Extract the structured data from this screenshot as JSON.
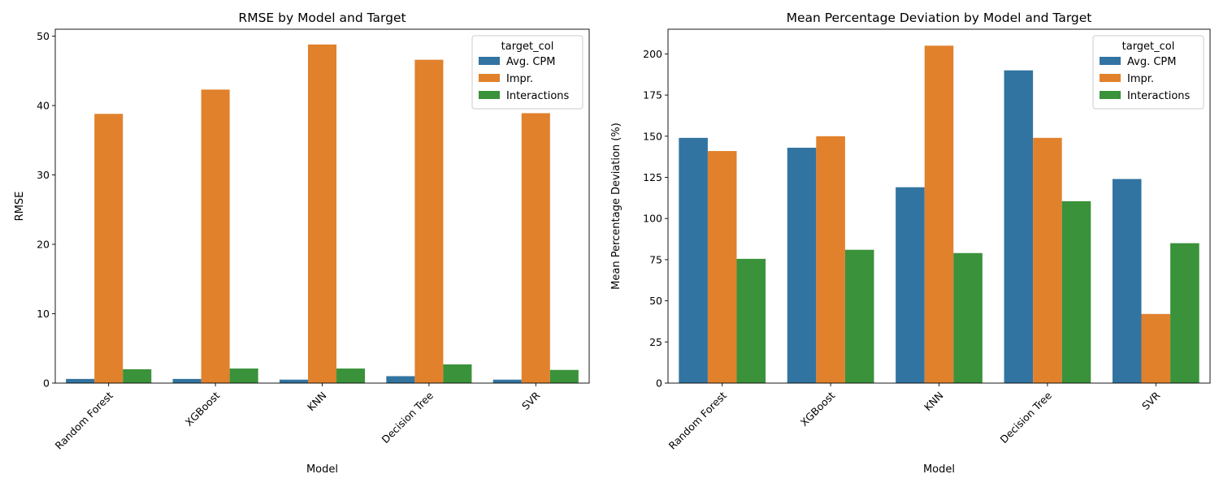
{
  "chart_data": [
    {
      "type": "bar",
      "title": "RMSE by Model and Target",
      "xlabel": "Model",
      "ylabel": "RMSE",
      "categories": [
        "Random Forest",
        "XGBoost",
        "KNN",
        "Decision Tree",
        "SVR"
      ],
      "ylim": [
        0,
        51
      ],
      "yticks": [
        0,
        10,
        20,
        30,
        40,
        50
      ],
      "legend": {
        "title": "target_col",
        "position": "top-right"
      },
      "series": [
        {
          "name": "Avg. CPM",
          "color": "#3274a1",
          "values": [
            0.6,
            0.6,
            0.5,
            1.0,
            0.5
          ]
        },
        {
          "name": "Impr.",
          "color": "#e1812c",
          "values": [
            38.8,
            42.3,
            48.8,
            46.6,
            38.9
          ]
        },
        {
          "name": "Interactions",
          "color": "#3a923a",
          "values": [
            2.0,
            2.1,
            2.1,
            2.7,
            1.9
          ]
        }
      ]
    },
    {
      "type": "bar",
      "title": "Mean Percentage Deviation by Model and Target",
      "xlabel": "Model",
      "ylabel": "Mean Percentage Deviation (%)",
      "categories": [
        "Random Forest",
        "XGBoost",
        "KNN",
        "Decision Tree",
        "SVR"
      ],
      "ylim": [
        0,
        215
      ],
      "yticks": [
        0,
        25,
        50,
        75,
        100,
        125,
        150,
        175,
        200
      ],
      "legend": {
        "title": "target_col",
        "position": "top-right"
      },
      "series": [
        {
          "name": "Avg. CPM",
          "color": "#3274a1",
          "values": [
            149,
            143,
            119,
            190,
            124
          ]
        },
        {
          "name": "Impr.",
          "color": "#e1812c",
          "values": [
            141,
            150,
            205,
            149,
            42
          ]
        },
        {
          "name": "Interactions",
          "color": "#3a923a",
          "values": [
            75.5,
            81,
            79,
            110.5,
            85
          ]
        }
      ]
    }
  ]
}
